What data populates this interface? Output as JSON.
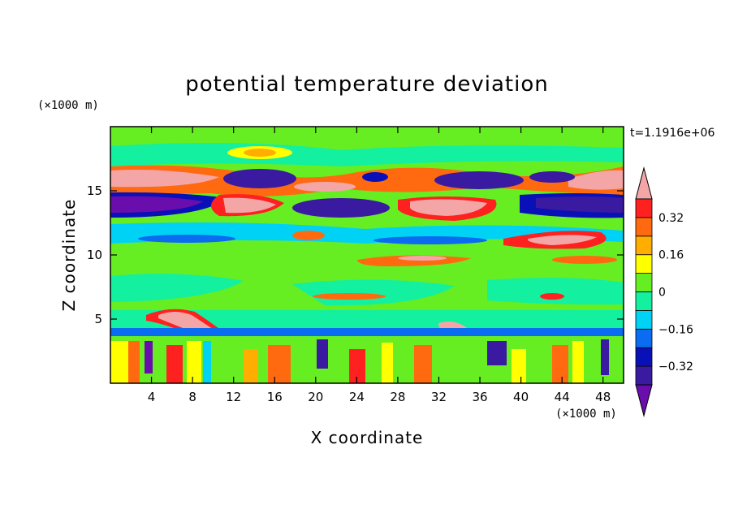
{
  "chart_data": {
    "type": "heatmap",
    "title": "potential temperature deviation",
    "xlabel": "X coordinate",
    "ylabel": "Z coordinate",
    "x_unit": "(×1000 m)",
    "y_unit": "(×1000 m)",
    "time_label": "t=1.1916e+06",
    "xlim": [
      0,
      50
    ],
    "ylim": [
      0,
      20
    ],
    "x_ticks": [
      4,
      8,
      12,
      16,
      20,
      24,
      28,
      32,
      36,
      40,
      44,
      48
    ],
    "y_ticks": [
      5,
      10,
      15
    ],
    "colorbar": {
      "levels": [
        -0.4,
        -0.32,
        -0.24,
        -0.16,
        -0.08,
        0,
        0.08,
        0.16,
        0.24,
        0.32,
        0.4
      ],
      "labeled_levels": [
        0.32,
        0.16,
        0,
        -0.16,
        -0.32
      ],
      "labels": [
        "0.32",
        "0.16",
        "0",
        "−0.16",
        "−0.32"
      ],
      "colors": [
        "#6a0dad",
        "#3a1aa0",
        "#0a10b8",
        "#0a6cf0",
        "#00d2f5",
        "#12f0a0",
        "#66ee22",
        "#ffff00",
        "#ffae00",
        "#ff6a10",
        "#ff2020",
        "#f4a6a6"
      ]
    },
    "bands": [
      {
        "z": [
          17.5,
          19.6
        ],
        "level": 0.04,
        "note": "upper green"
      },
      {
        "z": [
          15.8,
          17.0
        ],
        "level": 0.36,
        "note": "warm layer with pink cores"
      },
      {
        "z": [
          13.2,
          14.8
        ],
        "level": -0.36,
        "note": "cold layer with dark purple cores"
      },
      {
        "z": [
          11.5,
          12.8
        ],
        "level": -0.1,
        "note": "cyan band"
      },
      {
        "z": [
          10.0,
          11.2
        ],
        "level": 0.2,
        "note": "warm streaks"
      },
      {
        "z": [
          5.5,
          9.8
        ],
        "level": 0.03,
        "note": "mid green layer"
      },
      {
        "z": [
          4.0,
          5.3
        ],
        "level": -0.05,
        "note": "boundary band"
      },
      {
        "z": [
          0.0,
          3.4
        ],
        "level": 0.0,
        "note": "turbulent lower layer"
      }
    ]
  }
}
